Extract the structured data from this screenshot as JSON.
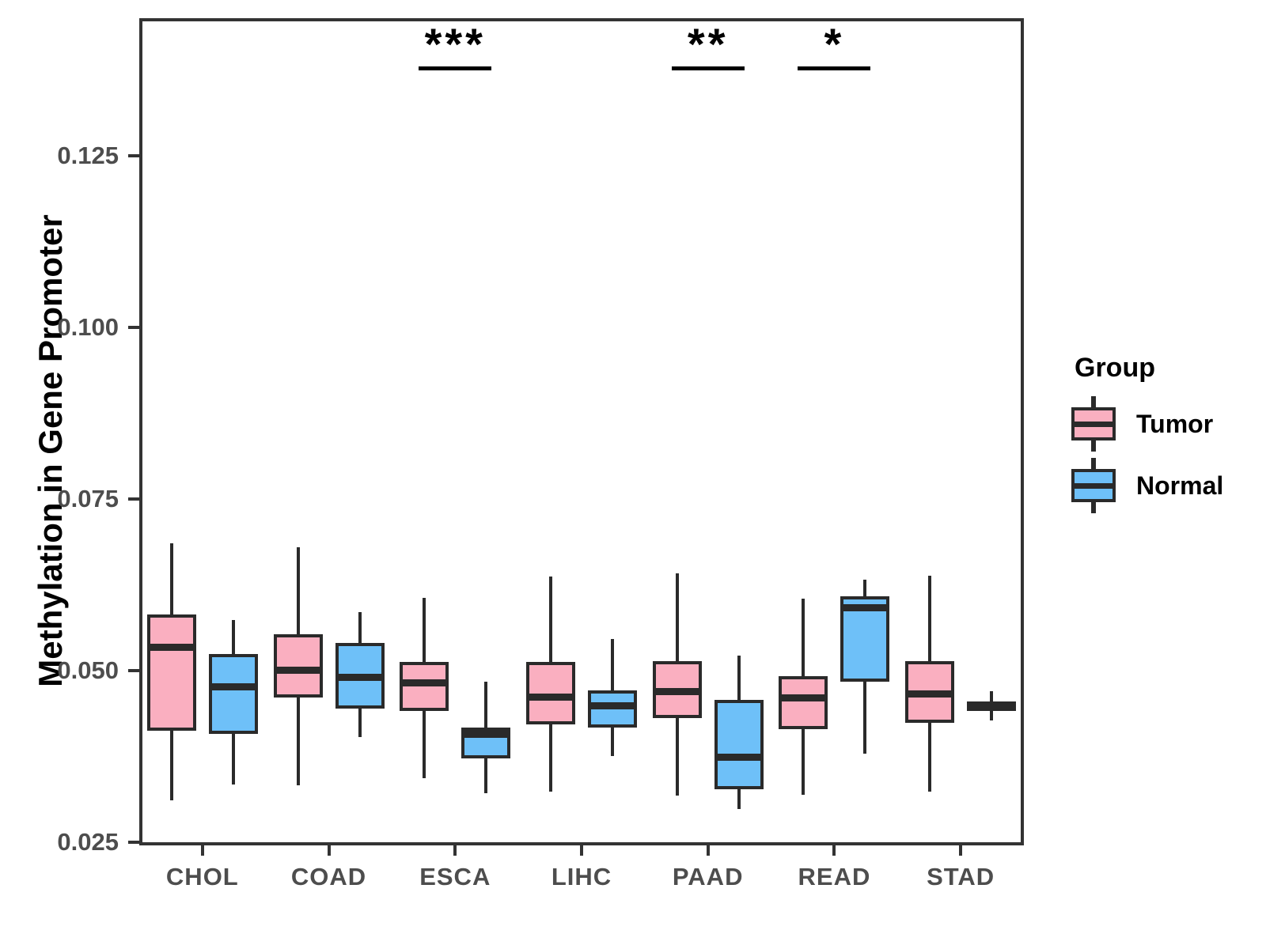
{
  "chart_data": {
    "type": "boxplot",
    "ylabel": "Methylation in Gene Promoter",
    "xlabel": "",
    "categories": [
      "CHOL",
      "COAD",
      "ESCA",
      "LIHC",
      "PAAD",
      "READ",
      "STAD"
    ],
    "yticks": [
      {
        "value": 0.025,
        "label": "0.025"
      },
      {
        "value": 0.05,
        "label": "0.050"
      },
      {
        "value": 0.075,
        "label": "0.075"
      },
      {
        "value": 0.1,
        "label": "0.100"
      },
      {
        "value": 0.125,
        "label": "0.125"
      }
    ],
    "ylim": [
      0.0245,
      0.145
    ],
    "grid": false,
    "stroke_color": "#2a2a2a",
    "series": [
      {
        "name": "Tumor",
        "color": "#FAAFC0",
        "boxes": [
          {
            "category": "CHOL",
            "min": 0.0311,
            "q1": 0.0412,
            "median": 0.0534,
            "q3": 0.0581,
            "max": 0.0685
          },
          {
            "category": "COAD",
            "min": 0.0333,
            "q1": 0.046,
            "median": 0.05,
            "q3": 0.0553,
            "max": 0.0679
          },
          {
            "category": "ESCA",
            "min": 0.0343,
            "q1": 0.0441,
            "median": 0.0482,
            "q3": 0.0512,
            "max": 0.0606
          },
          {
            "category": "LIHC",
            "min": 0.0323,
            "q1": 0.0421,
            "median": 0.0461,
            "q3": 0.0512,
            "max": 0.0637
          },
          {
            "category": "PAAD",
            "min": 0.0318,
            "q1": 0.043,
            "median": 0.0469,
            "q3": 0.0513,
            "max": 0.0641
          },
          {
            "category": "READ",
            "min": 0.0319,
            "q1": 0.0414,
            "median": 0.046,
            "q3": 0.0491,
            "max": 0.0605
          },
          {
            "category": "STAD",
            "min": 0.0323,
            "q1": 0.0423,
            "median": 0.0466,
            "q3": 0.0513,
            "max": 0.0638
          }
        ]
      },
      {
        "name": "Normal",
        "color": "#6EC0F8",
        "boxes": [
          {
            "category": "CHOL",
            "min": 0.0334,
            "q1": 0.0407,
            "median": 0.0476,
            "q3": 0.0524,
            "max": 0.0573
          },
          {
            "category": "COAD",
            "min": 0.0403,
            "q1": 0.0444,
            "median": 0.049,
            "q3": 0.054,
            "max": 0.0585
          },
          {
            "category": "ESCA",
            "min": 0.0321,
            "q1": 0.0372,
            "median": 0.0407,
            "q3": 0.0417,
            "max": 0.0483
          },
          {
            "category": "LIHC",
            "min": 0.0375,
            "q1": 0.0417,
            "median": 0.0448,
            "q3": 0.0471,
            "max": 0.0546
          },
          {
            "category": "PAAD",
            "min": 0.0298,
            "q1": 0.0327,
            "median": 0.0374,
            "q3": 0.0457,
            "max": 0.0521
          },
          {
            "category": "READ",
            "min": 0.0379,
            "q1": 0.0483,
            "median": 0.0591,
            "q3": 0.0608,
            "max": 0.0632
          },
          {
            "category": "STAD",
            "min": 0.0427,
            "q1": 0.0441,
            "median": 0.0447,
            "q3": 0.0455,
            "max": 0.047
          }
        ]
      }
    ],
    "annotations": [
      {
        "category": "ESCA",
        "label": "***"
      },
      {
        "category": "PAAD",
        "label": "**"
      },
      {
        "category": "READ",
        "label": "*"
      }
    ],
    "legend": {
      "title": "Group",
      "position": "right",
      "entries": [
        {
          "name": "Tumor",
          "color": "#FAAFC0"
        },
        {
          "name": "Normal",
          "color": "#6EC0F8"
        }
      ]
    }
  }
}
